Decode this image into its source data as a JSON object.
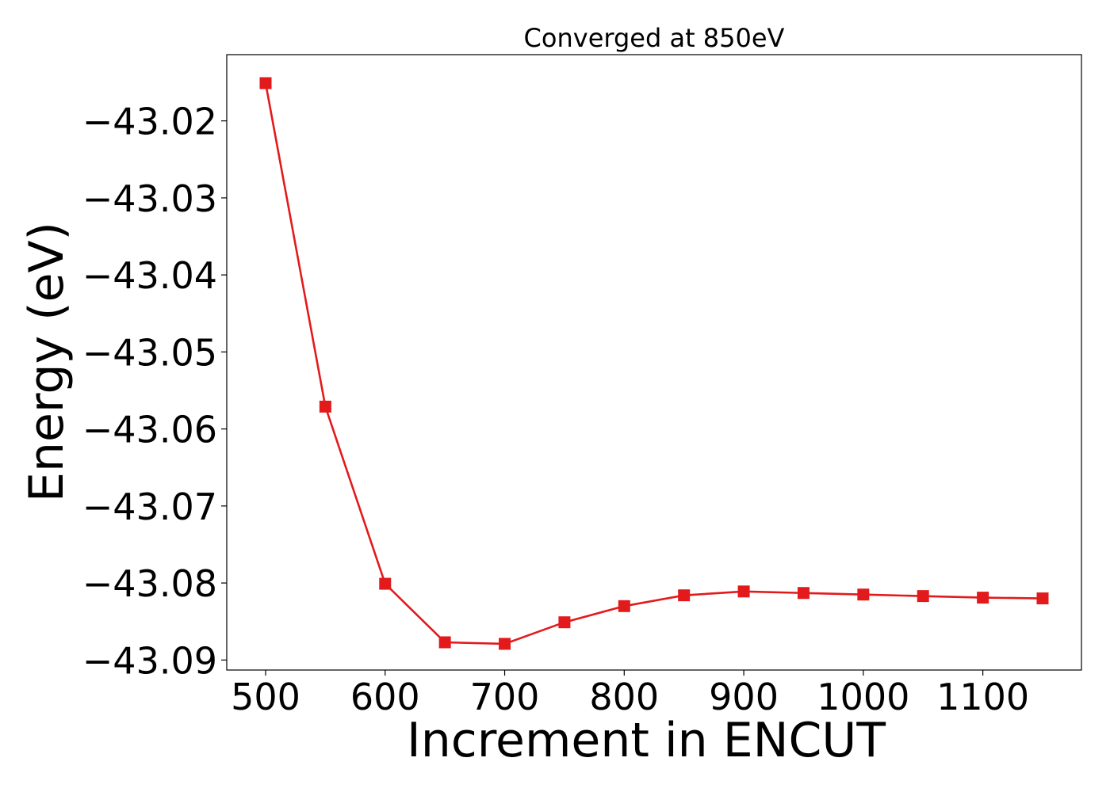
{
  "chart_data": {
    "type": "line",
    "title": "Converged at 850eV",
    "xlabel": "Increment in ENCUT",
    "ylabel": "Energy (eV)",
    "xlim": [
      467.5,
      1182.5
    ],
    "ylim": [
      -43.0913,
      -43.0114
    ],
    "xticks": [
      500,
      600,
      700,
      800,
      900,
      1000,
      1100
    ],
    "xtick_labels": [
      "500",
      "600",
      "700",
      "800",
      "900",
      "1000",
      "1100"
    ],
    "yticks": [
      -43.02,
      -43.03,
      -43.04,
      -43.05,
      -43.06,
      -43.07,
      -43.08,
      -43.09
    ],
    "ytick_labels": [
      "−43.02",
      "−43.03",
      "−43.04",
      "−43.05",
      "−43.06",
      "−43.07",
      "−43.08",
      "−43.09"
    ],
    "grid": false,
    "series": [
      {
        "color": "#e31a1c",
        "marker": "square",
        "x": [
          500,
          550,
          600,
          650,
          700,
          750,
          800,
          850,
          900,
          950,
          1000,
          1050,
          1100,
          1150
        ],
        "y": [
          -43.0151,
          -43.0571,
          -43.0801,
          -43.0877,
          -43.0879,
          -43.0851,
          -43.083,
          -43.0816,
          -43.0811,
          -43.0813,
          -43.0815,
          -43.0817,
          -43.0819,
          -43.082
        ]
      }
    ]
  }
}
